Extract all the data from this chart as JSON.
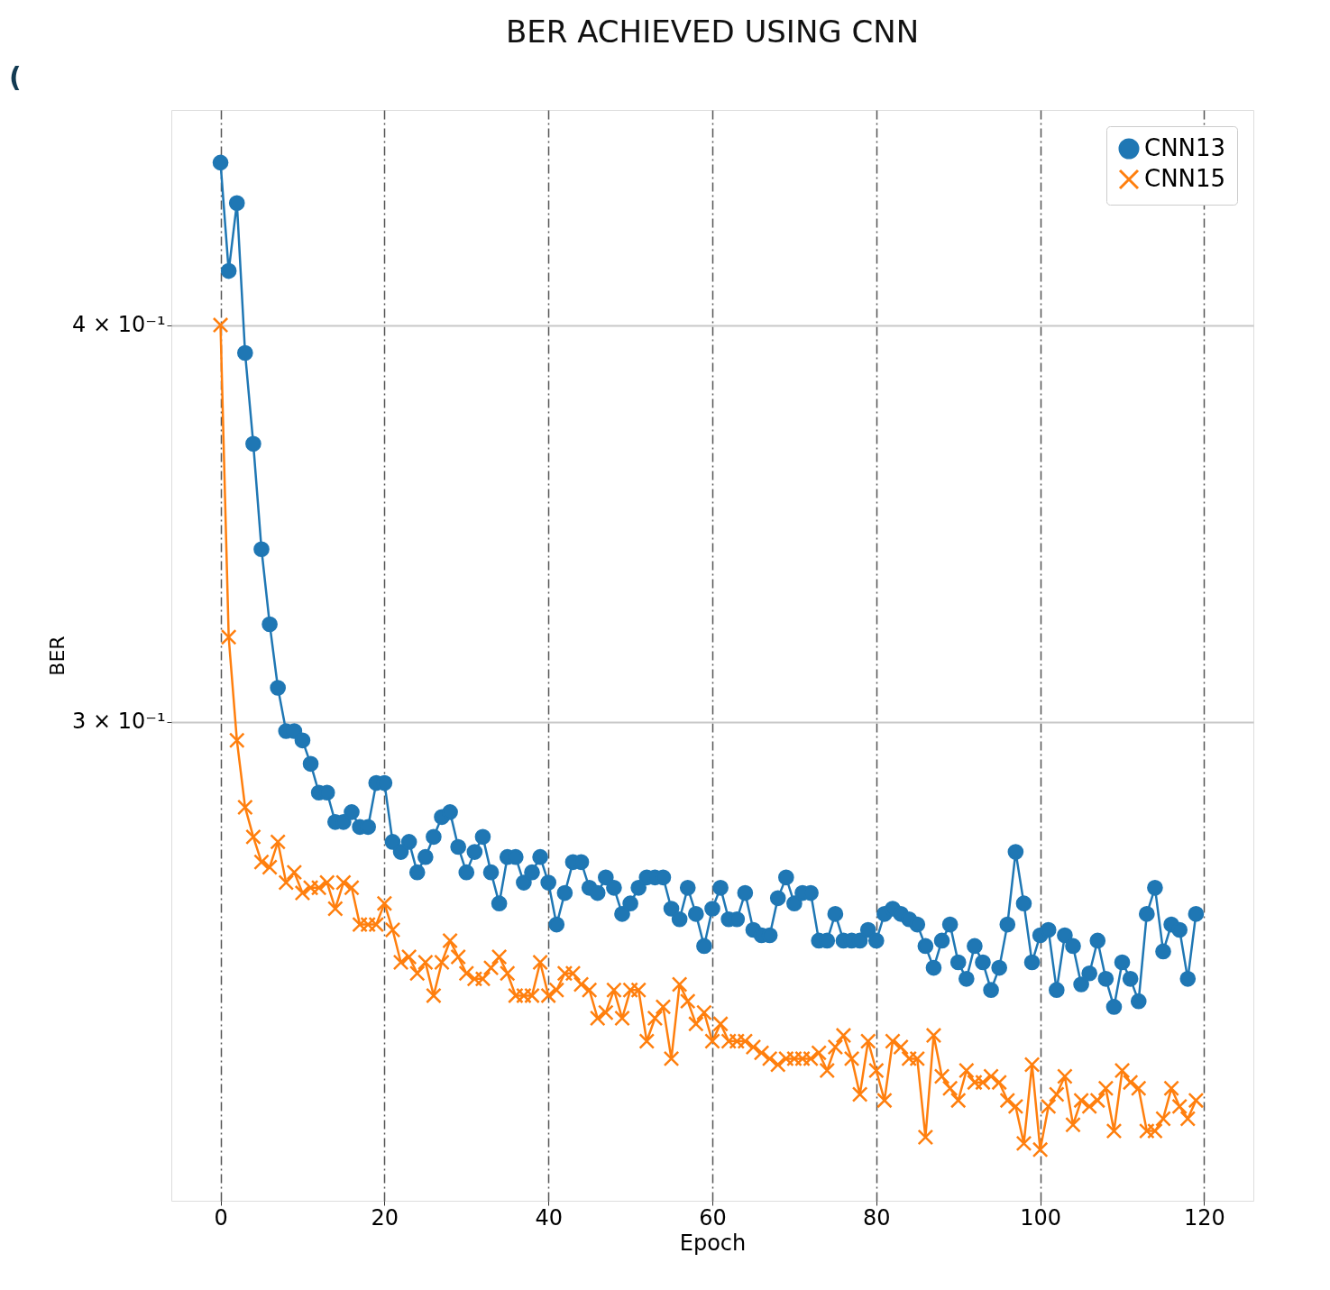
{
  "chart_data": {
    "type": "line",
    "title": "BER ACHIEVED USING CNN",
    "xlabel": "Epoch",
    "ylabel": "BER",
    "annotations": [
      "("
    ],
    "x": [
      0,
      1,
      2,
      3,
      4,
      5,
      6,
      7,
      8,
      9,
      10,
      11,
      12,
      13,
      14,
      15,
      16,
      17,
      18,
      19,
      20,
      21,
      22,
      23,
      24,
      25,
      26,
      27,
      28,
      29,
      30,
      31,
      32,
      33,
      34,
      35,
      36,
      37,
      38,
      39,
      40,
      41,
      42,
      43,
      44,
      45,
      46,
      47,
      48,
      49,
      50,
      51,
      52,
      53,
      54,
      55,
      56,
      57,
      58,
      59,
      60,
      61,
      62,
      63,
      64,
      65,
      66,
      67,
      68,
      69,
      70,
      71,
      72,
      73,
      74,
      75,
      76,
      77,
      78,
      79,
      80,
      81,
      82,
      83,
      84,
      85,
      86,
      87,
      88,
      89,
      90,
      91,
      92,
      93,
      94,
      95,
      96,
      97,
      98,
      99,
      100,
      101,
      102,
      103,
      104,
      105,
      106,
      107,
      108,
      109,
      110,
      111,
      112,
      113,
      114,
      115,
      116,
      117,
      118,
      119
    ],
    "series": [
      {
        "name": "CNN13",
        "color": "#1f77b4",
        "marker": "circle",
        "values": [
          0.45,
          0.416,
          0.437,
          0.392,
          0.367,
          0.34,
          0.322,
          0.3075,
          0.298,
          0.298,
          0.296,
          0.291,
          0.285,
          0.285,
          0.279,
          0.279,
          0.281,
          0.278,
          0.278,
          0.287,
          0.287,
          0.275,
          0.273,
          0.275,
          0.269,
          0.272,
          0.276,
          0.28,
          0.281,
          0.274,
          0.269,
          0.273,
          0.276,
          0.269,
          0.263,
          0.272,
          0.272,
          0.267,
          0.269,
          0.272,
          0.267,
          0.259,
          0.265,
          0.271,
          0.271,
          0.266,
          0.265,
          0.268,
          0.266,
          0.261,
          0.263,
          0.266,
          0.268,
          0.268,
          0.268,
          0.262,
          0.26,
          0.266,
          0.261,
          0.255,
          0.262,
          0.266,
          0.26,
          0.26,
          0.265,
          0.258,
          0.257,
          0.257,
          0.264,
          0.268,
          0.263,
          0.265,
          0.265,
          0.256,
          0.256,
          0.261,
          0.256,
          0.256,
          0.256,
          0.258,
          0.256,
          0.261,
          0.262,
          0.261,
          0.26,
          0.259,
          0.255,
          0.251,
          0.256,
          0.259,
          0.252,
          0.249,
          0.255,
          0.252,
          0.247,
          0.251,
          0.259,
          0.273,
          0.263,
          0.252,
          0.257,
          0.258,
          0.247,
          0.257,
          0.255,
          0.248,
          0.25,
          0.256,
          0.249,
          0.244,
          0.252,
          0.249,
          0.245,
          0.261,
          0.266,
          0.254,
          0.259,
          0.258,
          0.249,
          0.261
        ]
      },
      {
        "name": "CNN15",
        "color": "#ff7f0e",
        "marker": "cross",
        "values": [
          0.4,
          0.319,
          0.296,
          0.282,
          0.276,
          0.271,
          0.27,
          0.275,
          0.267,
          0.269,
          0.265,
          0.266,
          0.266,
          0.267,
          0.262,
          0.267,
          0.266,
          0.259,
          0.259,
          0.259,
          0.263,
          0.258,
          0.252,
          0.253,
          0.25,
          0.252,
          0.246,
          0.252,
          0.256,
          0.253,
          0.25,
          0.249,
          0.249,
          0.251,
          0.253,
          0.25,
          0.246,
          0.246,
          0.246,
          0.252,
          0.246,
          0.247,
          0.25,
          0.25,
          0.248,
          0.247,
          0.242,
          0.243,
          0.247,
          0.242,
          0.247,
          0.247,
          0.238,
          0.242,
          0.244,
          0.235,
          0.248,
          0.245,
          0.241,
          0.243,
          0.238,
          0.241,
          0.238,
          0.238,
          0.238,
          0.237,
          0.236,
          0.235,
          0.234,
          0.235,
          0.235,
          0.235,
          0.235,
          0.236,
          0.233,
          0.237,
          0.239,
          0.235,
          0.229,
          0.238,
          0.233,
          0.228,
          0.238,
          0.237,
          0.235,
          0.235,
          0.222,
          0.239,
          0.232,
          0.23,
          0.228,
          0.233,
          0.231,
          0.231,
          0.232,
          0.231,
          0.228,
          0.227,
          0.221,
          0.234,
          0.22,
          0.227,
          0.229,
          0.232,
          0.224,
          0.228,
          0.227,
          0.228,
          0.23,
          0.223,
          0.233,
          0.231,
          0.23,
          0.223,
          0.223,
          0.225,
          0.23,
          0.227,
          0.225,
          0.228
        ]
      }
    ],
    "xlim": [
      -6,
      126
    ],
    "xticks": [
      0,
      20,
      40,
      60,
      80,
      100,
      120
    ],
    "log": true,
    "ylim": [
      0.212,
      0.4675
    ],
    "yticks": [
      {
        "value": 0.4,
        "label": "4 × 10⁻¹"
      },
      {
        "value": 0.3,
        "label": "3 × 10⁻¹"
      }
    ],
    "grid": true,
    "legend": "top right",
    "line_style": "solid"
  }
}
